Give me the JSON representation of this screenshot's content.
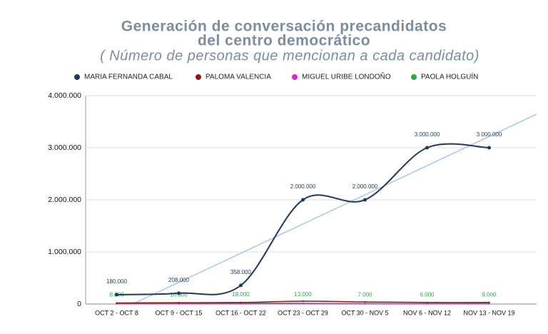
{
  "chart_data": {
    "type": "line",
    "title": "Generación de conversación precandidatos del centro democrático",
    "subtitle": "( Número de personas que mencionan a cada candidato)",
    "categories": [
      "OCT 2 - OCT 8",
      "OCT 9 - OCT 15",
      "OCT 16 - OCT 22",
      "OCT 23 - OCT 29",
      "OCT 30 - NOV 5",
      "NOV 6 - NOV 12",
      "NOV 13 - NOV 19"
    ],
    "series": [
      {
        "name": "MARIA FERNANDA CABAL",
        "color": "#1f3a5f",
        "values": [
          180000,
          208000,
          358000,
          2000000,
          2000000,
          3000000,
          3000000
        ],
        "value_labels": [
          "180.000",
          "208.000",
          "358.000",
          "2.000.000",
          "2.000.000",
          "3.000.000",
          "3.000.000"
        ]
      },
      {
        "name": "PALOMA VALENCIA",
        "color": "#8b1a1a",
        "values": [
          20000,
          25000,
          30000,
          55000,
          40000,
          30000,
          30000
        ]
      },
      {
        "name": "MIGUEL URIBE LONDOÑO",
        "color": "#e020e0",
        "values": [
          5000,
          5000,
          6000,
          8000,
          6000,
          5000,
          5000
        ]
      },
      {
        "name": "PAOLA HOLGUÍN",
        "color": "#2eaa4a",
        "values": [
          8000,
          10000,
          18000,
          13000,
          7000,
          6000,
          9000
        ],
        "value_labels": [
          "8.000",
          "10.000",
          "18.000",
          "13.000",
          "7.000",
          "6.000",
          "9.000"
        ]
      }
    ],
    "trendline": true,
    "trendline_color": "#a9c8e8",
    "ylim": [
      0,
      4000000
    ],
    "yticks": [
      0,
      {
        "value": 1000000,
        "label": "1.000.000"
      },
      {
        "value": 2000000,
        "label": "2.000.000"
      },
      {
        "value": 3000000,
        "label": "3.000.000"
      },
      {
        "value": 4000000,
        "label": "4.000.000"
      }
    ],
    "grid": true
  }
}
